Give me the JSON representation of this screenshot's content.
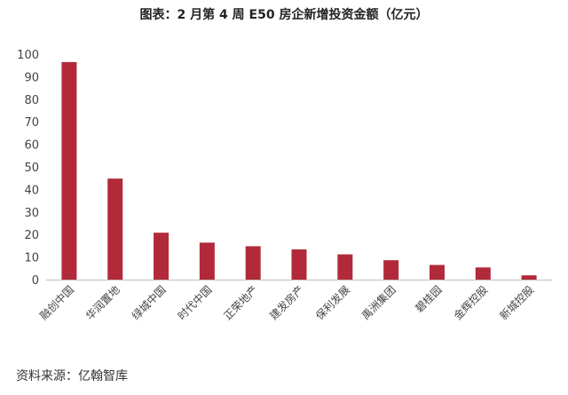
{
  "chart_data": {
    "type": "bar",
    "title": "图表：2 月第 4 周 E50 房企新增投资金额（亿元）",
    "categories": [
      "融创中国",
      "华润置地",
      "绿城中国",
      "时代中国",
      "正荣地产",
      "建发房产",
      "保利发展",
      "禹洲集团",
      "碧桂园",
      "金辉控股",
      "新城控股"
    ],
    "values": [
      96.5,
      44.8,
      20.8,
      16.4,
      14.8,
      13.4,
      11.2,
      8.6,
      6.5,
      5.4,
      1.9
    ],
    "ylim": [
      0,
      100
    ],
    "yticks": [
      "0",
      "10",
      "20",
      "30",
      "40",
      "50",
      "60",
      "70",
      "80",
      "90",
      "100"
    ],
    "xlabel": "",
    "ylabel": "",
    "grid": false,
    "bar_color": "#b22a3a"
  },
  "source": "资料来源：亿翰智库"
}
